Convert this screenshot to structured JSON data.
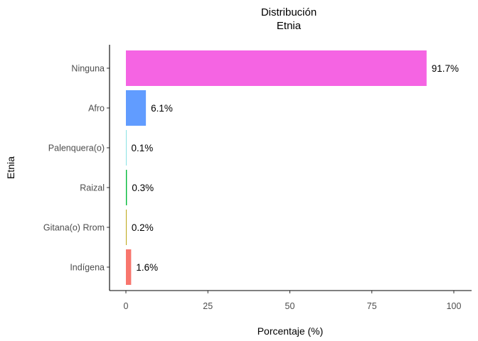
{
  "chart_data": {
    "type": "bar",
    "orientation": "horizontal",
    "title": "Distribución",
    "subtitle": "Etnia",
    "xlabel": "Porcentaje (%)",
    "ylabel": "Etnia",
    "xlim": [
      0,
      100
    ],
    "x_ticks": [
      "0",
      "25",
      "50",
      "75",
      "100"
    ],
    "categories": [
      "Ninguna",
      "Afro",
      "Palenquera(o)",
      "Raizal",
      "Gitana(o) Rrom",
      "Indígena"
    ],
    "values": [
      91.7,
      6.1,
      0.1,
      0.3,
      0.2,
      1.6
    ],
    "labels": [
      "91.7%",
      "6.1%",
      "0.1%",
      "0.3%",
      "0.2%",
      "1.6%"
    ],
    "colors": [
      "#F564E3",
      "#619CFF",
      "#00BFC4",
      "#00BA38",
      "#B79F00",
      "#F8766D"
    ],
    "grid": false,
    "legend": "none"
  }
}
